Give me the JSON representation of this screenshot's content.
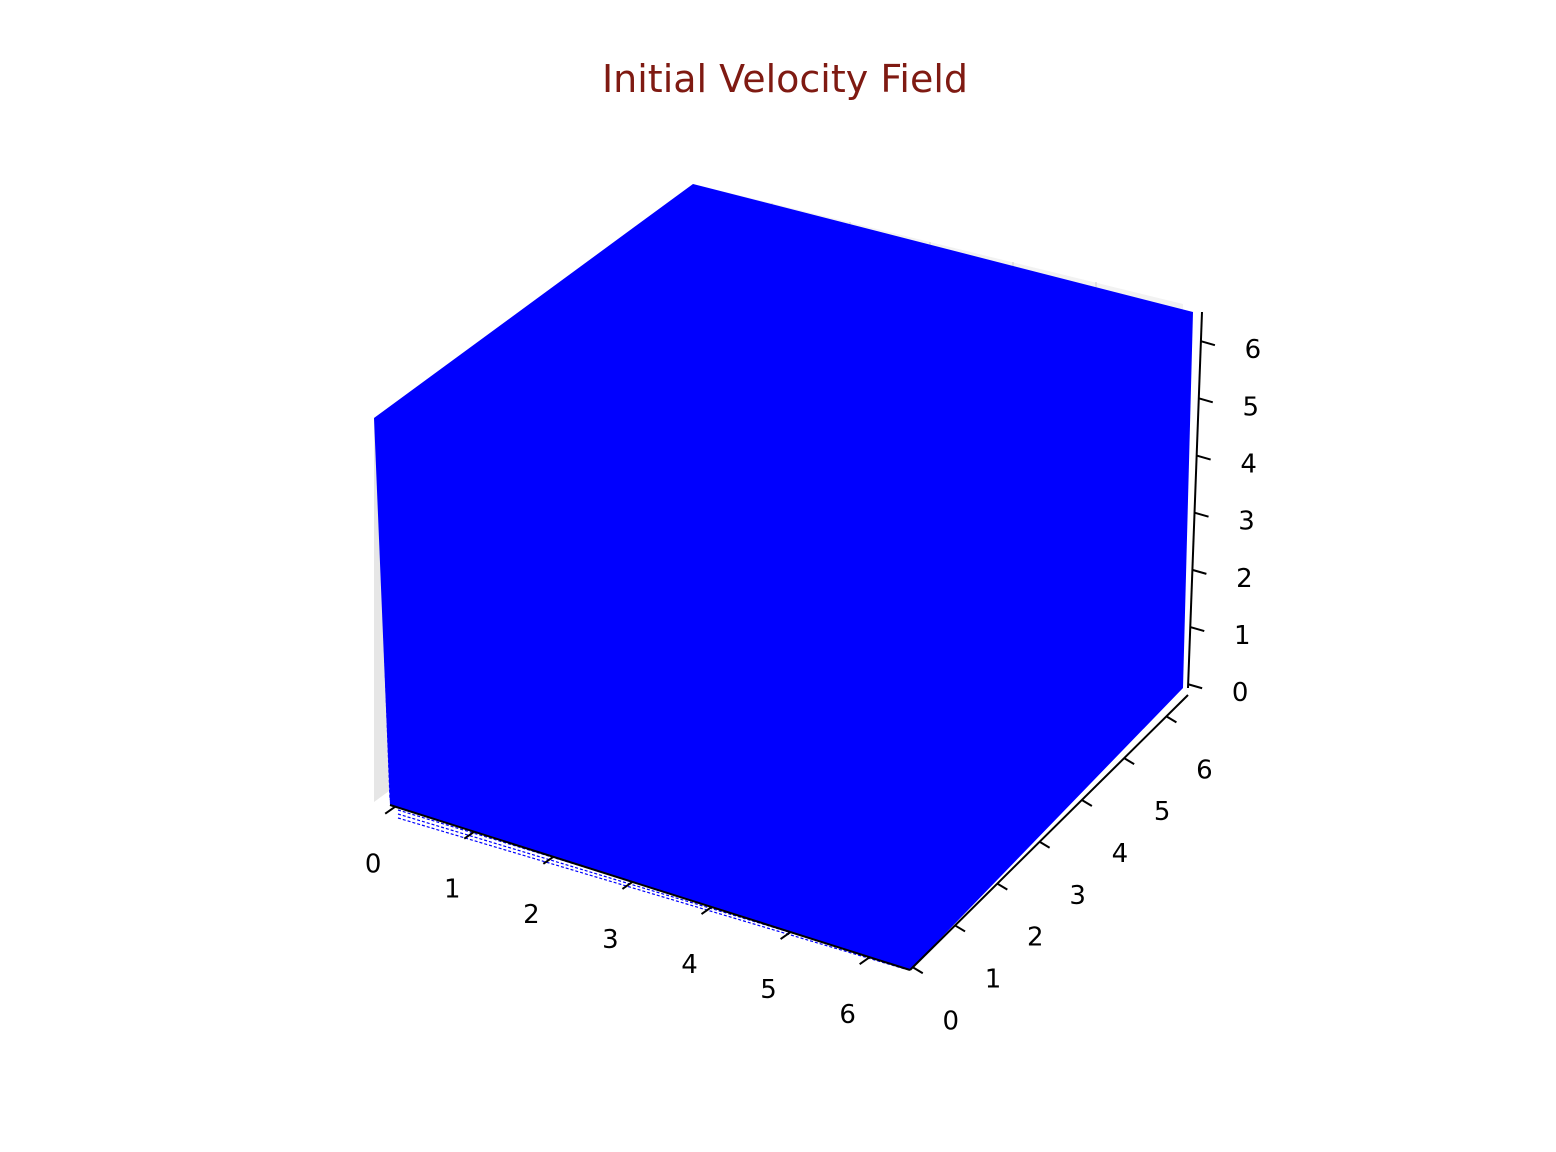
{
  "chart_data": {
    "type": "quiver3d",
    "title": "Initial Velocity Field",
    "x_ticks": [
      "0",
      "1",
      "2",
      "3",
      "4",
      "5",
      "6"
    ],
    "y_ticks": [
      "0",
      "1",
      "2",
      "3",
      "4",
      "5",
      "6"
    ],
    "z_ticks": [
      "0",
      "1",
      "2",
      "3",
      "4",
      "5",
      "6"
    ],
    "xlim": [
      0,
      6.28
    ],
    "ylim": [
      0,
      6.28
    ],
    "zlim": [
      0,
      6.28
    ],
    "grid": true
  },
  "colors": {
    "title": "#7f1a12",
    "arrows": "#0000ff",
    "pane_back": "#f2f2f2",
    "pane_side": "#e6e6e6",
    "axis": "#000000"
  }
}
